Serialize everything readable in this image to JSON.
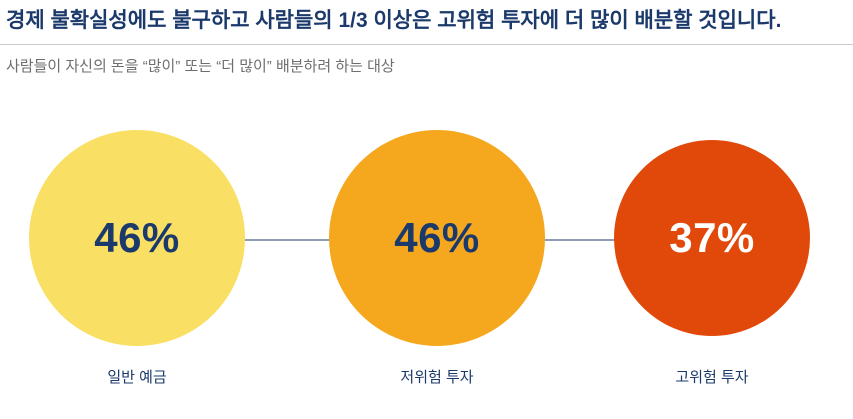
{
  "header": {
    "title": "경제 불확실성에도 불구하고 사람들의 1/3 이상은 고위험 투자에 더 많이 배분할 것입니다."
  },
  "subtitle": "사람들이 자신의 돈을 “많이” 또는 “더 많이” 배분하려 하는 대상",
  "colors": {
    "headline": "#1b3a6b",
    "subtitle": "#6e6e6e",
    "divider": "#c9c9c9",
    "connector_line": "#8f9db4"
  },
  "chart_data": {
    "type": "bar",
    "variant": "proportional-circle-infographic",
    "title": "사람들이 자신의 돈을 “많이” 또는 “더 많이” 배분하려 하는 대상",
    "categories": [
      "일반 예금",
      "저위험 투자",
      "고위험 투자"
    ],
    "values": [
      46,
      46,
      37
    ],
    "unit": "%",
    "legend": "none",
    "grid": false,
    "items": [
      {
        "label": "일반 예금",
        "value_text": "46%",
        "value": 46,
        "color": "#f9df63",
        "text_color": "#1b3a6b",
        "diameter": 216
      },
      {
        "label": "저위험 투자",
        "value_text": "46%",
        "value": 46,
        "color": "#f5a71e",
        "text_color": "#1b3a6b",
        "diameter": 216
      },
      {
        "label": "고위험 투자",
        "value_text": "37%",
        "value": 37,
        "color": "#e1490b",
        "text_color": "#ffffff",
        "diameter": 196
      }
    ]
  }
}
